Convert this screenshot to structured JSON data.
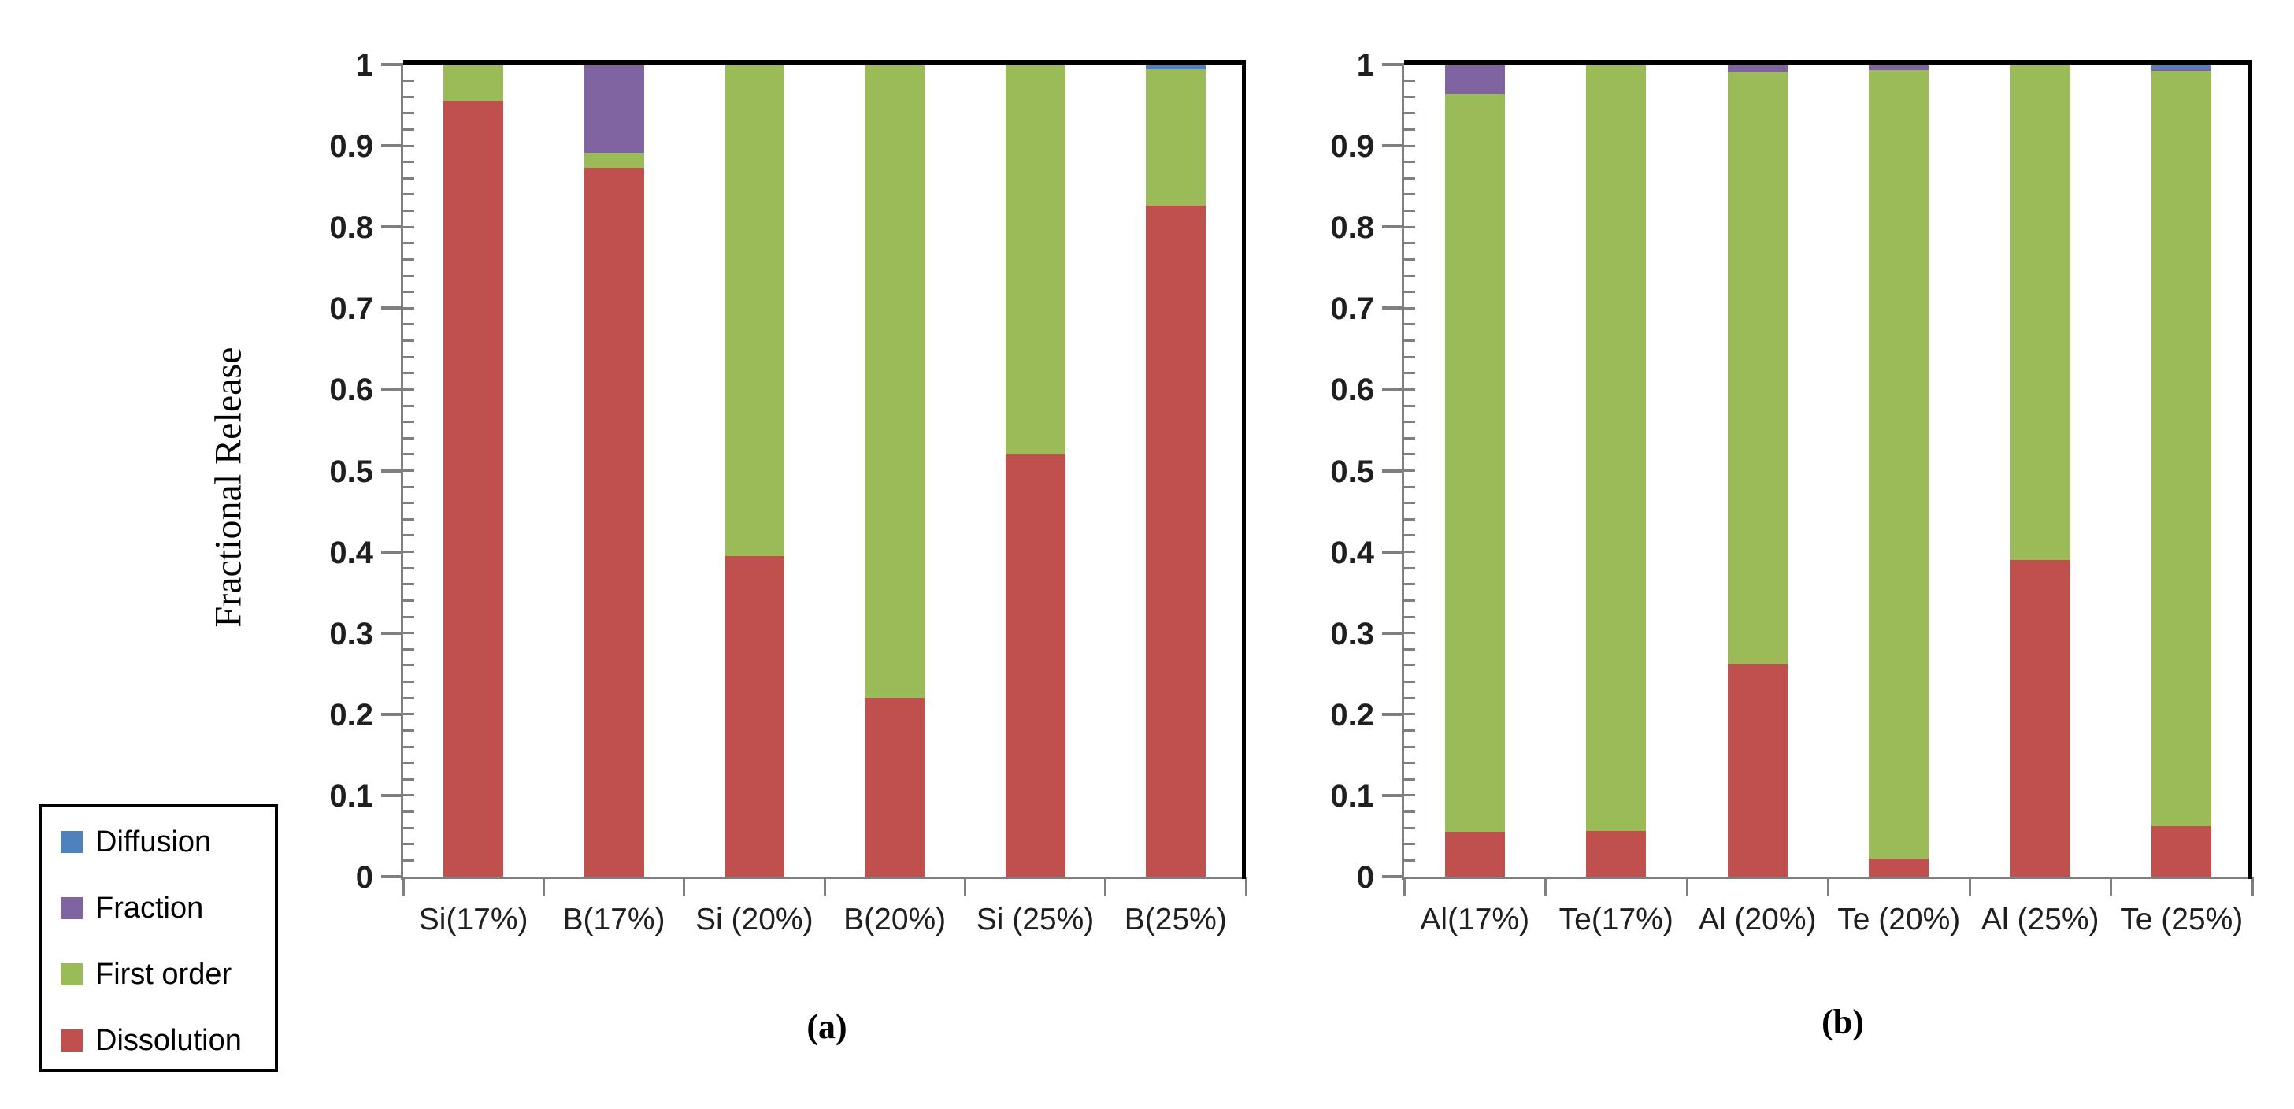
{
  "figure": {
    "background": "#ffffff",
    "ylabel": "Fractional Release",
    "captions": {
      "a": "(a)",
      "b": "(b)"
    }
  },
  "axis": {
    "min": 0,
    "max": 1,
    "major_step": 0.1,
    "minor_step": 0.02,
    "tick_labels": [
      "0",
      "0.1",
      "0.2",
      "0.3",
      "0.4",
      "0.5",
      "0.6",
      "0.7",
      "0.8",
      "0.9",
      "1"
    ]
  },
  "legend": {
    "position": "bottom-left",
    "items": [
      {
        "label": "Diffusion",
        "color": "#4F81BD"
      },
      {
        "label": "Fraction",
        "color": "#8064A2"
      },
      {
        "label": "First order",
        "color": "#9BBB59"
      },
      {
        "label": "Dissolution",
        "color": "#C0504D"
      }
    ]
  },
  "chart_data": [
    {
      "id": "a",
      "type": "bar",
      "stacked": true,
      "title": "",
      "xlabel": "",
      "ylabel": "Fractional Release",
      "ylim": [
        0,
        1
      ],
      "grid": false,
      "categories": [
        "Si(17%)",
        "B(17%)",
        "Si (20%)",
        "B(20%)",
        "Si (25%)",
        "B(25%)"
      ],
      "series": [
        {
          "name": "Dissolution",
          "color": "#C0504D",
          "values": [
            0.955,
            0.873,
            0.395,
            0.22,
            0.52,
            0.826
          ]
        },
        {
          "name": "First order",
          "color": "#9BBB59",
          "values": [
            0.045,
            0.018,
            0.605,
            0.78,
            0.48,
            0.168
          ]
        },
        {
          "name": "Fraction",
          "color": "#8064A2",
          "values": [
            0.0,
            0.109,
            0.0,
            0.0,
            0.0,
            0.0
          ]
        },
        {
          "name": "Diffusion",
          "color": "#4F81BD",
          "values": [
            0.0,
            0.0,
            0.0,
            0.0,
            0.0,
            0.006
          ]
        }
      ]
    },
    {
      "id": "b",
      "type": "bar",
      "stacked": true,
      "title": "",
      "xlabel": "",
      "ylabel": "Fractional Release",
      "ylim": [
        0,
        1
      ],
      "grid": false,
      "categories": [
        "Al(17%)",
        "Te(17%)",
        "Al (20%)",
        "Te (20%)",
        "Al (25%)",
        "Te (25%)"
      ],
      "series": [
        {
          "name": "Dissolution",
          "color": "#C0504D",
          "values": [
            0.055,
            0.056,
            0.262,
            0.022,
            0.39,
            0.062
          ]
        },
        {
          "name": "First order",
          "color": "#9BBB59",
          "values": [
            0.909,
            0.944,
            0.728,
            0.971,
            0.61,
            0.93
          ]
        },
        {
          "name": "Fraction",
          "color": "#8064A2",
          "values": [
            0.036,
            0.0,
            0.01,
            0.007,
            0.0,
            0.003
          ]
        },
        {
          "name": "Diffusion",
          "color": "#4F81BD",
          "values": [
            0.0,
            0.0,
            0.0,
            0.0,
            0.0,
            0.005
          ]
        }
      ]
    }
  ]
}
